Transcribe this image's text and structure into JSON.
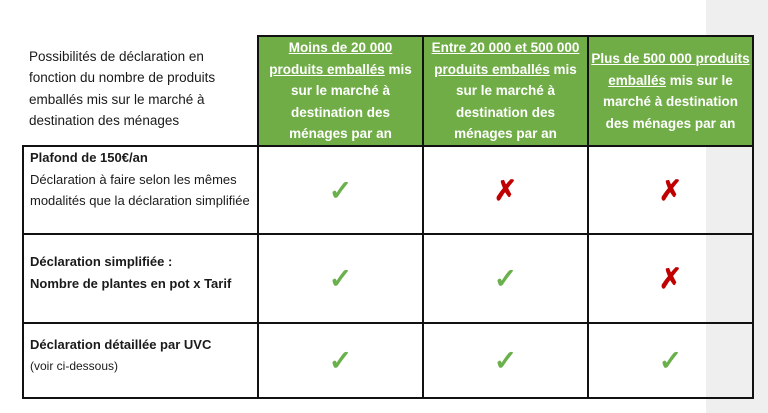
{
  "table": {
    "corner_label": "Possibilités de déclaration en fonction du nombre de produits emballés mis sur le marché à destination des ménages",
    "columns": [
      {
        "underlined": "Moins de 20 000 produits emballés",
        "rest": " mis sur le marché à destination des ménages par an"
      },
      {
        "underlined": "Entre 20 000 et 500 000 produits emballés",
        "rest": " mis sur le marché à destination des ménages par an"
      },
      {
        "underlined": "Plus de 500 000 produits emballés",
        "rest": " mis sur le marché à destination des ménages par an"
      }
    ],
    "rows": [
      {
        "title": "Plafond de 150€/an",
        "subtitle": "Déclaration à faire selon les mêmes modalités que la déclaration simplifiée",
        "values": [
          "check",
          "cross",
          "cross"
        ]
      },
      {
        "title": "Déclaration simplifiée :",
        "title2": "Nombre de plantes en pot x Tarif",
        "values": [
          "check",
          "check",
          "cross"
        ]
      },
      {
        "title": "Déclaration détaillée par UVC",
        "subtitle": "(voir ci-dessous)",
        "values": [
          "check",
          "check",
          "check"
        ]
      }
    ],
    "symbols": {
      "check": "✓",
      "cross": "✗"
    },
    "colors": {
      "header_bg": "#70ad47",
      "check": "#6ab04c",
      "cross": "#c00000"
    }
  }
}
